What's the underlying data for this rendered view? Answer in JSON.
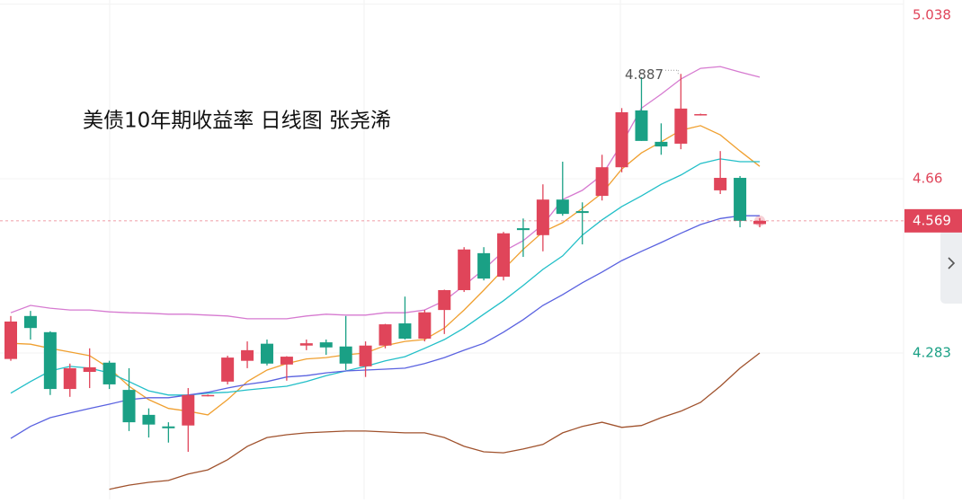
{
  "chart_data": {
    "type": "candlestick",
    "title": "美债10年期收益率 日线图  张尧浠",
    "open": [
      4.27,
      4.363,
      4.328,
      4.205,
      4.242,
      4.262,
      4.203,
      4.149,
      4.124,
      4.126,
      4.19,
      4.221,
      4.266,
      4.303,
      4.258,
      4.299,
      4.306,
      4.297,
      4.254,
      4.299,
      4.347,
      4.314,
      4.376,
      4.419,
      4.499,
      4.448,
      4.553,
      4.538,
      4.615,
      4.59,
      4.623,
      4.685,
      4.808,
      4.74,
      4.736,
      4.798,
      4.635,
      4.662,
      4.562
    ],
    "high": [
      4.363,
      4.374,
      4.33,
      4.26,
      4.293,
      4.266,
      4.25,
      4.163,
      4.133,
      4.207,
      4.193,
      4.277,
      4.308,
      4.312,
      4.276,
      4.312,
      4.312,
      4.363,
      4.308,
      4.346,
      4.405,
      4.376,
      4.42,
      4.512,
      4.512,
      4.545,
      4.574,
      4.648,
      4.697,
      4.609,
      4.712,
      4.813,
      4.88,
      4.78,
      4.887,
      4.801,
      4.72,
      4.666,
      4.575
    ],
    "low": [
      4.266,
      4.312,
      4.192,
      4.188,
      4.207,
      4.205,
      4.114,
      4.1,
      4.089,
      4.069,
      4.189,
      4.215,
      4.25,
      4.256,
      4.223,
      4.289,
      4.279,
      4.246,
      4.231,
      4.293,
      4.312,
      4.308,
      4.324,
      4.415,
      4.44,
      4.44,
      4.491,
      4.503,
      4.58,
      4.518,
      4.613,
      4.674,
      4.742,
      4.712,
      4.724,
      4.797,
      4.627,
      4.555,
      4.555
    ],
    "close": [
      4.351,
      4.337,
      4.205,
      4.25,
      4.252,
      4.215,
      4.133,
      4.128,
      4.12,
      4.192,
      4.192,
      4.273,
      4.289,
      4.26,
      4.275,
      4.304,
      4.295,
      4.26,
      4.299,
      4.345,
      4.314,
      4.371,
      4.419,
      4.507,
      4.444,
      4.542,
      4.549,
      4.615,
      4.584,
      4.586,
      4.685,
      4.804,
      4.742,
      4.73,
      4.812,
      4.8,
      4.662,
      4.569,
      4.569
    ],
    "up_color": "#e0455a",
    "down_color": "#1aa085",
    "series": [
      {
        "color": "#d67ad0",
        "values": [
          4.37,
          4.386,
          4.38,
          4.376,
          4.376,
          4.372,
          4.37,
          4.369,
          4.367,
          4.367,
          4.365,
          4.363,
          4.357,
          4.357,
          4.357,
          4.363,
          4.367,
          4.365,
          4.365,
          4.37,
          4.37,
          4.376,
          4.396,
          4.429,
          4.464,
          4.503,
          4.526,
          4.561,
          4.615,
          4.635,
          4.668,
          4.736,
          4.813,
          4.843,
          4.876,
          4.899,
          4.903,
          4.891,
          4.88
        ]
      },
      {
        "color": "#f0a030",
        "values": [
          4.304,
          4.302,
          4.293,
          4.285,
          4.277,
          4.25,
          4.211,
          4.182,
          4.163,
          4.157,
          4.149,
          4.182,
          4.221,
          4.246,
          4.26,
          4.27,
          4.273,
          4.279,
          4.283,
          4.299,
          4.308,
          4.312,
          4.337,
          4.376,
          4.419,
          4.464,
          4.507,
          4.545,
          4.565,
          4.596,
          4.629,
          4.681,
          4.716,
          4.74,
          4.765,
          4.775,
          4.755,
          4.72,
          4.687
        ]
      },
      {
        "color": "#22bfc8",
        "values": [
          4.196,
          4.221,
          4.244,
          4.254,
          4.25,
          4.24,
          4.221,
          4.201,
          4.192,
          4.192,
          4.196,
          4.198,
          4.203,
          4.207,
          4.211,
          4.221,
          4.234,
          4.244,
          4.254,
          4.266,
          4.275,
          4.293,
          4.312,
          4.337,
          4.367,
          4.396,
          4.429,
          4.464,
          4.493,
          4.538,
          4.571,
          4.6,
          4.623,
          4.648,
          4.668,
          4.693,
          4.703,
          4.697,
          4.697
        ]
      },
      {
        "color": "#5a62e0",
        "values": [
          4.098,
          4.124,
          4.143,
          4.153,
          4.163,
          4.172,
          4.182,
          4.186,
          4.186,
          4.192,
          4.198,
          4.207,
          4.215,
          4.221,
          4.231,
          4.234,
          4.24,
          4.244,
          4.246,
          4.248,
          4.25,
          4.26,
          4.273,
          4.289,
          4.304,
          4.328,
          4.355,
          4.386,
          4.409,
          4.435,
          4.458,
          4.483,
          4.503,
          4.522,
          4.542,
          4.561,
          4.574,
          4.58,
          4.58
        ]
      },
      {
        "color": "#a0522d",
        "values": [
          null,
          null,
          null,
          null,
          null,
          3.988,
          3.997,
          4.003,
          4.007,
          4.021,
          4.03,
          4.052,
          4.081,
          4.1,
          4.106,
          4.11,
          4.112,
          4.114,
          4.114,
          4.112,
          4.11,
          4.11,
          4.1,
          4.081,
          4.069,
          4.067,
          4.075,
          4.085,
          4.11,
          4.124,
          4.133,
          4.122,
          4.126,
          4.143,
          4.157,
          4.176,
          4.211,
          4.25,
          4.283
        ]
      }
    ],
    "ylim": [
      3.966,
      5.047
    ],
    "yticks": [
      4.283,
      4.66,
      5.038
    ],
    "ytick_colors": [
      "#1aa085",
      "#e0455a",
      "#e0455a"
    ],
    "last_price": 4.569,
    "annotation": 4.887,
    "grid": true
  }
}
